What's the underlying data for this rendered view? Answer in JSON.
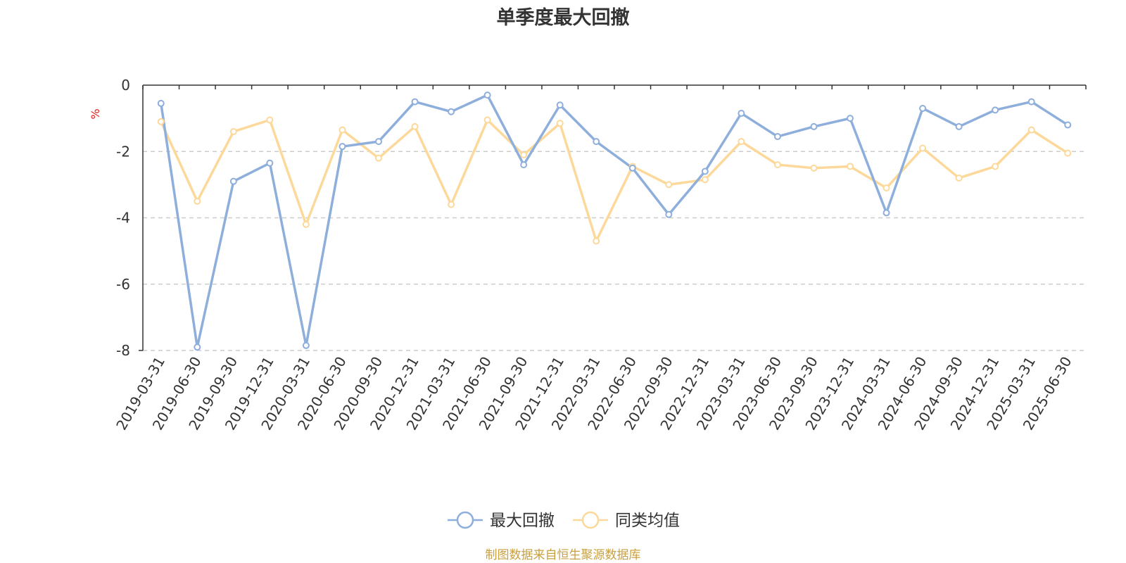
{
  "chart_data": {
    "type": "line",
    "title": "单季度最大回撤",
    "ylabel": "%",
    "source": "制图数据来自恒生聚源数据库",
    "ylim": [
      -8,
      0
    ],
    "yticks": [
      0,
      -2,
      -4,
      -6,
      -8
    ],
    "grid": true,
    "legend_position": "bottom-center",
    "categories": [
      "2019-03-31",
      "2019-06-30",
      "2019-09-30",
      "2019-12-31",
      "2020-03-31",
      "2020-06-30",
      "2020-09-30",
      "2020-12-31",
      "2021-03-31",
      "2021-06-30",
      "2021-09-30",
      "2021-12-31",
      "2022-03-31",
      "2022-06-30",
      "2022-09-30",
      "2022-12-31",
      "2023-03-31",
      "2023-06-30",
      "2023-09-30",
      "2023-12-31",
      "2024-03-31",
      "2024-06-30",
      "2024-09-30",
      "2024-12-31",
      "2025-03-31",
      "2025-06-30"
    ],
    "series": [
      {
        "name": "最大回撤",
        "color": "#8eaedb",
        "values": [
          -0.55,
          -7.9,
          -2.9,
          -2.35,
          -7.85,
          -1.85,
          -1.7,
          -0.5,
          -0.8,
          -0.3,
          -2.4,
          -0.6,
          -1.7,
          -2.5,
          -3.9,
          -2.6,
          -0.85,
          -1.55,
          -1.25,
          -1.0,
          -3.85,
          -0.7,
          -1.25,
          -0.75,
          -0.5,
          -1.2
        ]
      },
      {
        "name": "同类均值",
        "color": "#fcd99a",
        "values": [
          -1.1,
          -3.5,
          -1.4,
          -1.05,
          -4.2,
          -1.35,
          -2.2,
          -1.25,
          -3.6,
          -1.05,
          -2.1,
          -1.15,
          -4.7,
          -2.45,
          -3.0,
          -2.85,
          -1.7,
          -2.4,
          -2.5,
          -2.45,
          -3.1,
          -1.9,
          -2.8,
          -2.45,
          -1.35,
          -2.05
        ]
      }
    ]
  }
}
